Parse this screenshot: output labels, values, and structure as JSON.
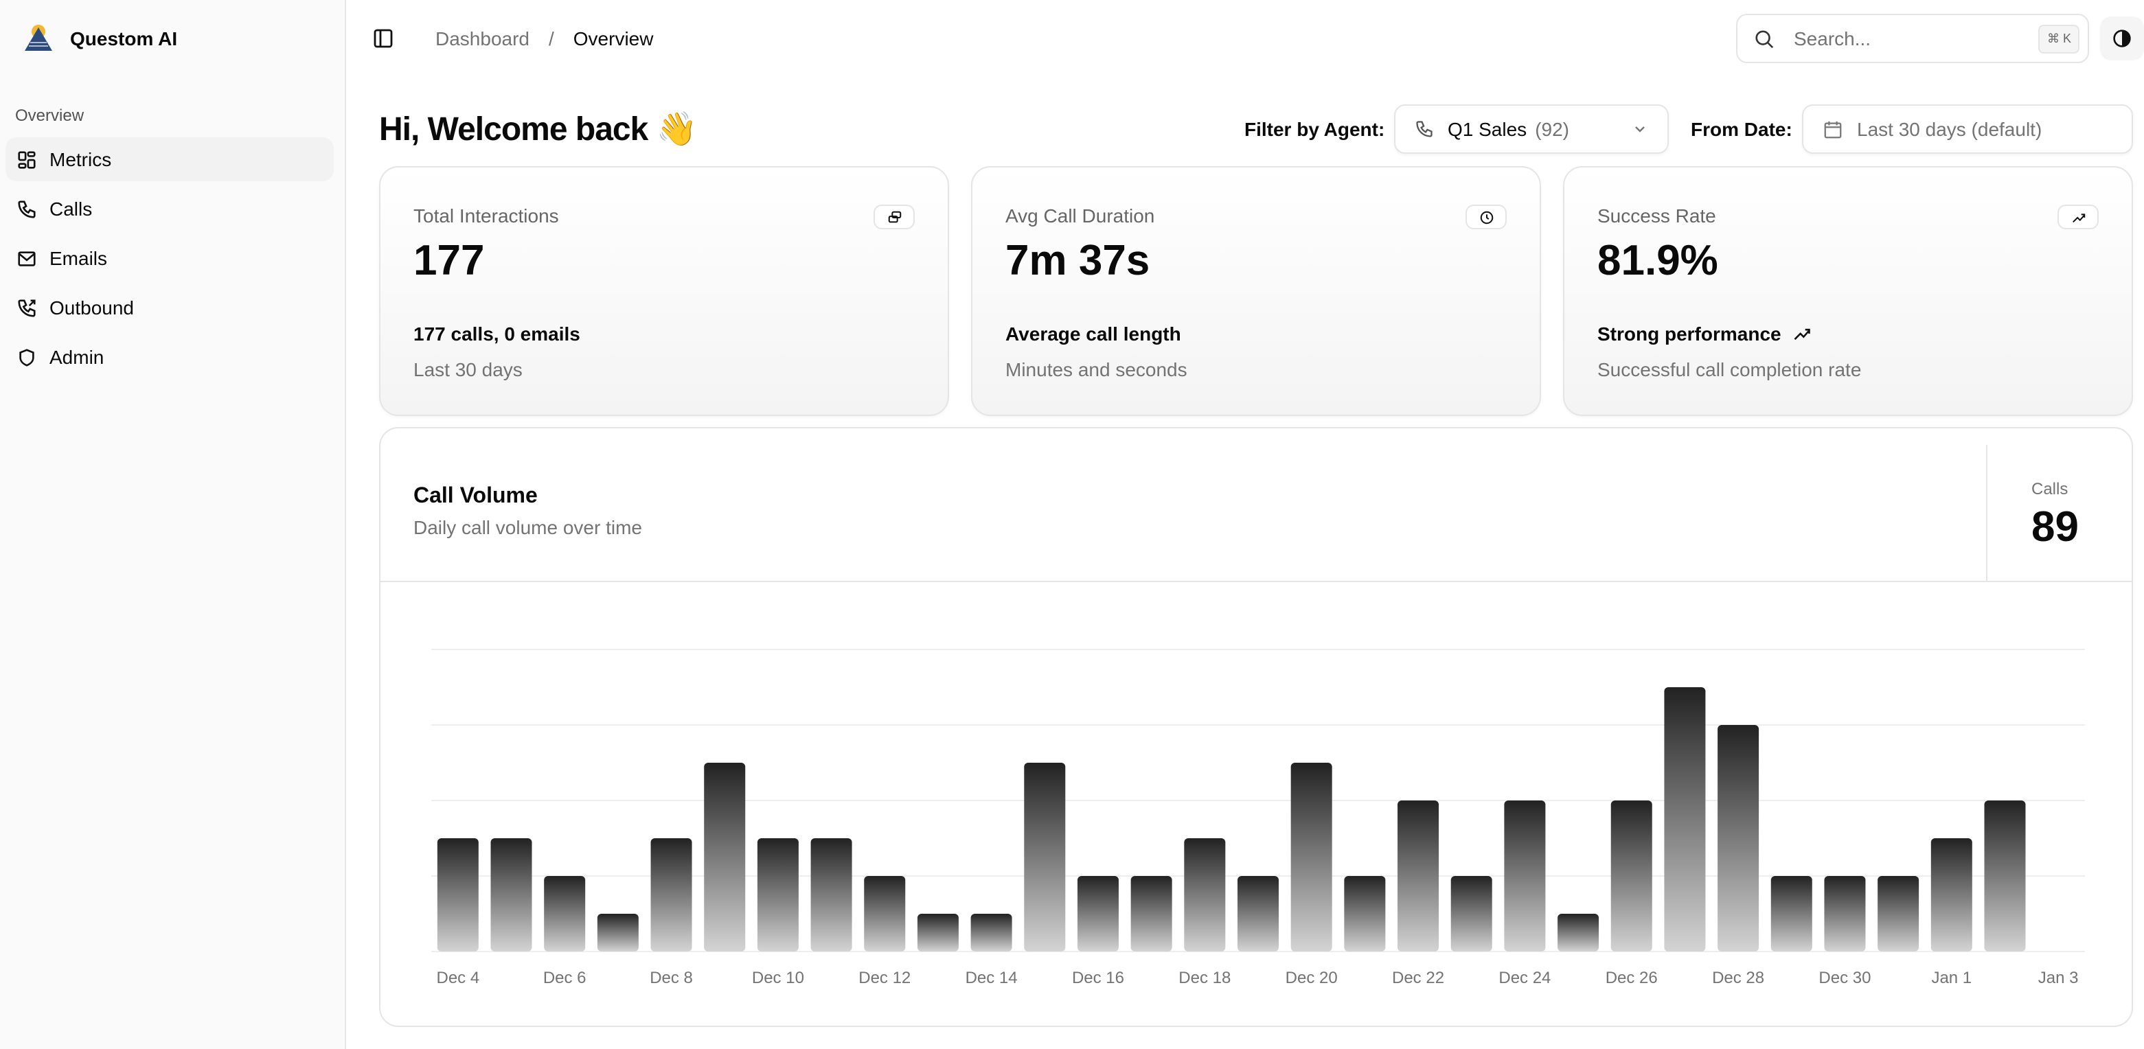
{
  "app": {
    "name": "Questom AI"
  },
  "sidebar": {
    "group_label": "Overview",
    "items": [
      {
        "label": "Metrics"
      },
      {
        "label": "Calls"
      },
      {
        "label": "Emails"
      },
      {
        "label": "Outbound"
      },
      {
        "label": "Admin"
      }
    ]
  },
  "breadcrumb": {
    "parent": "Dashboard",
    "separator": "/",
    "current": "Overview"
  },
  "search": {
    "placeholder": "Search...",
    "shortcut": "⌘ K"
  },
  "header": {
    "welcome": "Hi, Welcome back 👋",
    "filter_label": "Filter by Agent:",
    "agent": "Q1 Sales",
    "agent_count": "(92)",
    "date_label": "From Date:",
    "date_value": "Last 30 days (default)"
  },
  "cards": [
    {
      "title": "Total Interactions",
      "value": "177",
      "subtitle": "177 calls, 0 emails",
      "desc": "Last 30 days"
    },
    {
      "title": "Avg Call Duration",
      "value": "7m 37s",
      "subtitle": "Average call length",
      "desc": "Minutes and seconds"
    },
    {
      "title": "Success Rate",
      "value": "81.9%",
      "subtitle": "Strong performance",
      "desc": "Successful call completion rate"
    }
  ],
  "chart_card": {
    "title": "Call Volume",
    "subtitle": "Daily call volume over time",
    "stat_label": "Calls",
    "stat_value": "89"
  },
  "chart_data": {
    "type": "bar",
    "title": "Call Volume",
    "xlabel": "",
    "ylabel": "Calls",
    "ylim": [
      0,
      8
    ],
    "grid": true,
    "categories": [
      "Dec 4",
      "Dec 5",
      "Dec 6",
      "Dec 7",
      "Dec 8",
      "Dec 9",
      "Dec 10",
      "Dec 11",
      "Dec 12",
      "Dec 13",
      "Dec 14",
      "Dec 15",
      "Dec 16",
      "Dec 17",
      "Dec 18",
      "Dec 19",
      "Dec 20",
      "Dec 21",
      "Dec 22",
      "Dec 23",
      "Dec 24",
      "Dec 25",
      "Dec 26",
      "Dec 27",
      "Dec 28",
      "Dec 29",
      "Dec 30",
      "Dec 31",
      "Jan 1",
      "Jan 2",
      "Jan 3"
    ],
    "values": [
      3,
      3,
      2,
      1,
      3,
      5,
      3,
      3,
      2,
      1,
      1,
      5,
      2,
      2,
      3,
      2,
      5,
      2,
      4,
      2,
      4,
      1,
      4,
      7,
      6,
      2,
      2,
      2,
      3,
      4,
      0
    ],
    "tick_labels": [
      "Dec 4",
      "Dec 6",
      "Dec 8",
      "Dec 10",
      "Dec 12",
      "Dec 14",
      "Dec 16",
      "Dec 18",
      "Dec 20",
      "Dec 22",
      "Dec 24",
      "Dec 26",
      "Dec 28",
      "Dec 30",
      "Jan 1",
      "Jan 3"
    ]
  }
}
